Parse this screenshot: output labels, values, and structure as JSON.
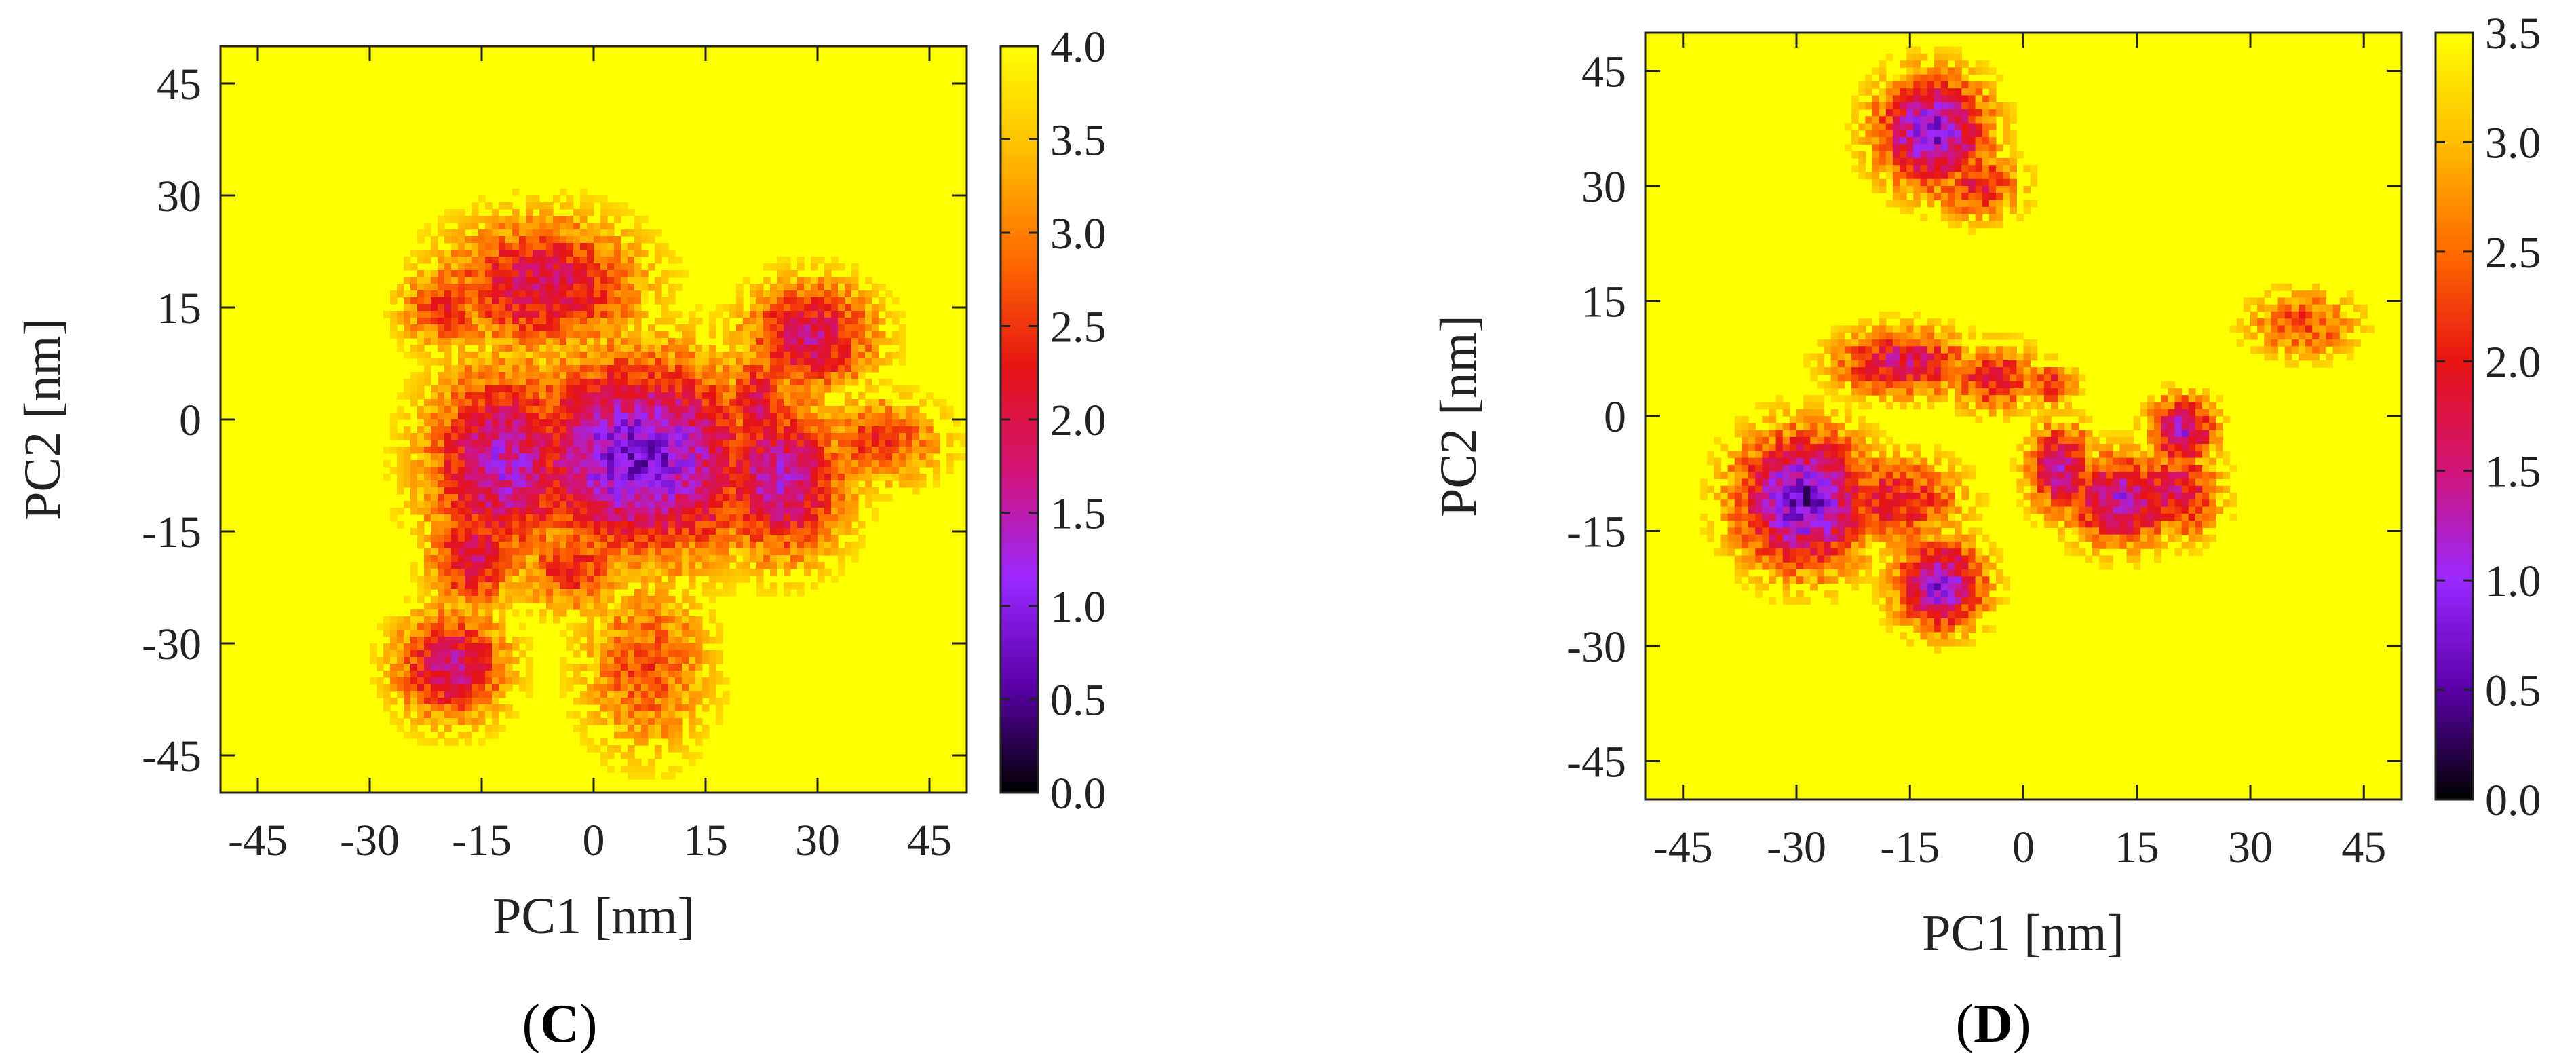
{
  "chart_data": [
    {
      "panel": "C",
      "type": "heatmap",
      "xlabel": "PC1 [nm]",
      "ylabel": "PC2 [nm]",
      "xlim": [
        -50,
        50
      ],
      "ylim": [
        -50,
        50
      ],
      "xticks": [
        -45,
        -30,
        -15,
        0,
        15,
        30,
        45
      ],
      "yticks": [
        -45,
        -30,
        -15,
        0,
        15,
        30,
        45
      ],
      "colorbar": {
        "min": 0.0,
        "max": 4.0,
        "ticks": [
          "0.0",
          "0.5",
          "1.0",
          "1.5",
          "2.0",
          "2.5",
          "3.0",
          "3.5",
          "4.0"
        ],
        "colormap": [
          "#000000",
          "#5a00a8",
          "#9a28ff",
          "#d11478",
          "#e61414",
          "#ff6a00",
          "#ffbc00",
          "#ffff00"
        ]
      },
      "background_value": 4.0,
      "seed": 11,
      "basins": [
        {
          "x": 6,
          "y": -5,
          "sx": 11,
          "sy": 9,
          "depth": 3.2
        },
        {
          "x": 5,
          "y": -7,
          "sx": 4,
          "sy": 3,
          "depth": 1.0
        },
        {
          "x": 22,
          "y": 2,
          "sx": 3,
          "sy": 5,
          "depth": 2.0
        },
        {
          "x": 23,
          "y": 2,
          "sx": 1.2,
          "sy": 1.2,
          "depth": 1.2
        },
        {
          "x": 25,
          "y": -8,
          "sx": 6,
          "sy": 7,
          "depth": 2.6
        },
        {
          "x": -12,
          "y": -6,
          "sx": 7,
          "sy": 9,
          "depth": 2.6
        },
        {
          "x": -7,
          "y": 18,
          "sx": 9,
          "sy": 6,
          "depth": 2.1
        },
        {
          "x": 29,
          "y": 11,
          "sx": 6,
          "sy": 5,
          "depth": 2.2
        },
        {
          "x": 38,
          "y": -3,
          "sx": 6,
          "sy": 4,
          "depth": 1.5
        },
        {
          "x": -16,
          "y": -18,
          "sx": 4,
          "sy": 5,
          "depth": 2.1
        },
        {
          "x": -19,
          "y": -33,
          "sx": 5,
          "sy": 5,
          "depth": 2.3
        },
        {
          "x": 7,
          "y": -33,
          "sx": 6,
          "sy": 8,
          "depth": 1.3
        },
        {
          "x": -20,
          "y": 15,
          "sx": 4,
          "sy": 4,
          "depth": 1.6
        },
        {
          "x": -3,
          "y": -20,
          "sx": 5,
          "sy": 4,
          "depth": 1.6
        },
        {
          "x": 12,
          "y": 4,
          "sx": 4,
          "sy": 3,
          "depth": 1.7
        },
        {
          "x": 15,
          "y": -12,
          "sx": 5,
          "sy": 4,
          "depth": 1.8
        }
      ]
    },
    {
      "panel": "D",
      "type": "heatmap",
      "xlabel": "PC1 [nm]",
      "ylabel": "PC2 [nm]",
      "xlim": [
        -50,
        50
      ],
      "ylim": [
        -50,
        50
      ],
      "xticks": [
        -45,
        -30,
        -15,
        0,
        15,
        30,
        45
      ],
      "yticks": [
        -45,
        -30,
        -15,
        0,
        15,
        30,
        45
      ],
      "colorbar": {
        "min": 0.0,
        "max": 3.5,
        "ticks": [
          "0.0",
          "0.5",
          "1.0",
          "1.5",
          "2.0",
          "2.5",
          "3.0",
          "3.5"
        ],
        "colormap": [
          "#000000",
          "#5a00a8",
          "#9a28ff",
          "#d11478",
          "#e61414",
          "#ff6a00",
          "#ffbc00",
          "#ffff00"
        ]
      },
      "background_value": 3.5,
      "seed": 29,
      "basins": [
        {
          "x": -29,
          "y": -11,
          "sx": 6,
          "sy": 6,
          "depth": 2.9
        },
        {
          "x": -30,
          "y": -8,
          "sx": 1.5,
          "sy": 2,
          "depth": 1.0
        },
        {
          "x": -17,
          "y": -11,
          "sx": 6,
          "sy": 4,
          "depth": 1.6
        },
        {
          "x": -12,
          "y": 37,
          "sx": 5,
          "sy": 5,
          "depth": 2.7
        },
        {
          "x": -6,
          "y": 30,
          "sx": 4,
          "sy": 3,
          "depth": 1.5
        },
        {
          "x": -16,
          "y": 7,
          "sx": 6,
          "sy": 3,
          "depth": 1.9
        },
        {
          "x": -4,
          "y": 5,
          "sx": 4,
          "sy": 3,
          "depth": 1.6
        },
        {
          "x": 4,
          "y": 4,
          "sx": 2,
          "sy": 2,
          "depth": 1.5
        },
        {
          "x": -11,
          "y": -22,
          "sx": 4,
          "sy": 4,
          "depth": 2.6
        },
        {
          "x": 5,
          "y": -7,
          "sx": 3,
          "sy": 4,
          "depth": 2.1
        },
        {
          "x": 13,
          "y": -11,
          "sx": 5,
          "sy": 4,
          "depth": 2.3
        },
        {
          "x": 21,
          "y": -2,
          "sx": 3,
          "sy": 3,
          "depth": 2.3
        },
        {
          "x": 20,
          "y": -10,
          "sx": 4,
          "sy": 4,
          "depth": 1.8
        },
        {
          "x": 37,
          "y": 12,
          "sx": 5,
          "sy": 3,
          "depth": 1.2
        }
      ]
    }
  ],
  "captions": [
    "(C)",
    "(D)"
  ]
}
